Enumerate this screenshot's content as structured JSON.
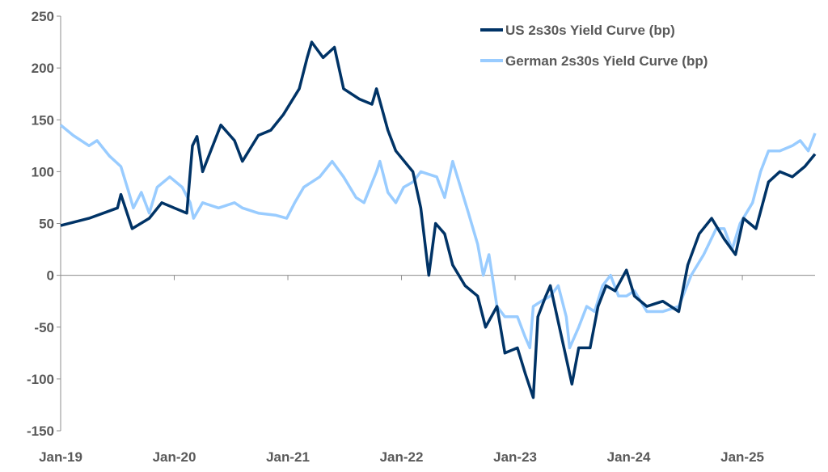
{
  "chart_data": {
    "type": "line",
    "title": "",
    "xlabel": "",
    "ylabel": "",
    "ylim": [
      -150,
      250
    ],
    "yticks": [
      -150,
      -100,
      -50,
      0,
      50,
      100,
      150,
      200,
      250
    ],
    "xlim": [
      2019.0,
      2025.64
    ],
    "xticks": [
      {
        "x": 2019,
        "label": "Jan-19"
      },
      {
        "x": 2020,
        "label": "Jan-20"
      },
      {
        "x": 2021,
        "label": "Jan-21"
      },
      {
        "x": 2022,
        "label": "Jan-22"
      },
      {
        "x": 2023,
        "label": "Jan-23"
      },
      {
        "x": 2024,
        "label": "Jan-24"
      },
      {
        "x": 2025,
        "label": "Jan-25"
      }
    ],
    "grid": false,
    "legend_position": "top-right",
    "series": [
      {
        "name": "US 2s30s Yield Curve (bp)",
        "color": "#003366",
        "points": [
          [
            2019.0,
            48
          ],
          [
            2019.25,
            55
          ],
          [
            2019.5,
            65
          ],
          [
            2019.53,
            78
          ],
          [
            2019.63,
            45
          ],
          [
            2019.78,
            55
          ],
          [
            2019.89,
            70
          ],
          [
            2020.0,
            65
          ],
          [
            2020.11,
            60
          ],
          [
            2020.16,
            125
          ],
          [
            2020.2,
            134
          ],
          [
            2020.25,
            100
          ],
          [
            2020.41,
            145
          ],
          [
            2020.53,
            130
          ],
          [
            2020.6,
            110
          ],
          [
            2020.74,
            135
          ],
          [
            2020.85,
            140
          ],
          [
            2020.96,
            155
          ],
          [
            2021.1,
            180
          ],
          [
            2021.17,
            210
          ],
          [
            2021.21,
            225
          ],
          [
            2021.31,
            210
          ],
          [
            2021.41,
            220
          ],
          [
            2021.49,
            180
          ],
          [
            2021.63,
            170
          ],
          [
            2021.74,
            165
          ],
          [
            2021.78,
            180
          ],
          [
            2021.88,
            140
          ],
          [
            2021.95,
            120
          ],
          [
            2022.1,
            100
          ],
          [
            2022.17,
            65
          ],
          [
            2022.24,
            0
          ],
          [
            2022.3,
            50
          ],
          [
            2022.38,
            40
          ],
          [
            2022.45,
            10
          ],
          [
            2022.56,
            -10
          ],
          [
            2022.67,
            -20
          ],
          [
            2022.74,
            -50
          ],
          [
            2022.84,
            -30
          ],
          [
            2022.91,
            -75
          ],
          [
            2023.02,
            -70
          ],
          [
            2023.09,
            -95
          ],
          [
            2023.16,
            -118
          ],
          [
            2023.2,
            -40
          ],
          [
            2023.27,
            -20
          ],
          [
            2023.31,
            -10
          ],
          [
            2023.38,
            -45
          ],
          [
            2023.45,
            -80
          ],
          [
            2023.5,
            -105
          ],
          [
            2023.56,
            -70
          ],
          [
            2023.66,
            -70
          ],
          [
            2023.73,
            -30
          ],
          [
            2023.8,
            -10
          ],
          [
            2023.88,
            -15
          ],
          [
            2023.98,
            5
          ],
          [
            2024.05,
            -20
          ],
          [
            2024.16,
            -30
          ],
          [
            2024.3,
            -25
          ],
          [
            2024.44,
            -35
          ],
          [
            2024.52,
            10
          ],
          [
            2024.62,
            40
          ],
          [
            2024.73,
            55
          ],
          [
            2024.84,
            35
          ],
          [
            2024.94,
            20
          ],
          [
            2025.01,
            55
          ],
          [
            2025.12,
            45
          ],
          [
            2025.23,
            90
          ],
          [
            2025.33,
            100
          ],
          [
            2025.44,
            95
          ],
          [
            2025.55,
            105
          ],
          [
            2025.64,
            117
          ]
        ]
      },
      {
        "name": "German 2s30s Yield Curve (bp)",
        "color": "#99CCFF",
        "points": [
          [
            2019.0,
            145
          ],
          [
            2019.11,
            135
          ],
          [
            2019.25,
            125
          ],
          [
            2019.32,
            130
          ],
          [
            2019.43,
            115
          ],
          [
            2019.53,
            105
          ],
          [
            2019.6,
            80
          ],
          [
            2019.64,
            65
          ],
          [
            2019.71,
            80
          ],
          [
            2019.78,
            60
          ],
          [
            2019.85,
            85
          ],
          [
            2019.96,
            95
          ],
          [
            2020.07,
            85
          ],
          [
            2020.14,
            70
          ],
          [
            2020.17,
            55
          ],
          [
            2020.25,
            70
          ],
          [
            2020.39,
            65
          ],
          [
            2020.53,
            70
          ],
          [
            2020.6,
            65
          ],
          [
            2020.74,
            60
          ],
          [
            2020.89,
            58
          ],
          [
            2020.99,
            55
          ],
          [
            2021.06,
            70
          ],
          [
            2021.14,
            85
          ],
          [
            2021.28,
            95
          ],
          [
            2021.39,
            110
          ],
          [
            2021.49,
            95
          ],
          [
            2021.6,
            75
          ],
          [
            2021.67,
            70
          ],
          [
            2021.78,
            100
          ],
          [
            2021.81,
            110
          ],
          [
            2021.88,
            80
          ],
          [
            2021.95,
            70
          ],
          [
            2022.02,
            85
          ],
          [
            2022.1,
            90
          ],
          [
            2022.17,
            100
          ],
          [
            2022.31,
            95
          ],
          [
            2022.38,
            75
          ],
          [
            2022.45,
            110
          ],
          [
            2022.52,
            85
          ],
          [
            2022.59,
            60
          ],
          [
            2022.67,
            30
          ],
          [
            2022.72,
            0
          ],
          [
            2022.77,
            20
          ],
          [
            2022.84,
            -30
          ],
          [
            2022.91,
            -40
          ],
          [
            2023.02,
            -40
          ],
          [
            2023.09,
            -60
          ],
          [
            2023.13,
            -70
          ],
          [
            2023.16,
            -30
          ],
          [
            2023.23,
            -25
          ],
          [
            2023.31,
            -20
          ],
          [
            2023.38,
            -10
          ],
          [
            2023.45,
            -40
          ],
          [
            2023.48,
            -70
          ],
          [
            2023.56,
            -50
          ],
          [
            2023.63,
            -30
          ],
          [
            2023.7,
            -35
          ],
          [
            2023.77,
            -10
          ],
          [
            2023.84,
            0
          ],
          [
            2023.91,
            -20
          ],
          [
            2023.98,
            -20
          ],
          [
            2024.05,
            -15
          ],
          [
            2024.16,
            -35
          ],
          [
            2024.3,
            -35
          ],
          [
            2024.44,
            -30
          ],
          [
            2024.55,
            0
          ],
          [
            2024.66,
            20
          ],
          [
            2024.77,
            45
          ],
          [
            2024.84,
            45
          ],
          [
            2024.91,
            25
          ],
          [
            2024.98,
            50
          ],
          [
            2025.09,
            70
          ],
          [
            2025.16,
            100
          ],
          [
            2025.23,
            120
          ],
          [
            2025.33,
            120
          ],
          [
            2025.44,
            125
          ],
          [
            2025.51,
            130
          ],
          [
            2025.58,
            120
          ],
          [
            2025.64,
            137
          ]
        ]
      }
    ]
  }
}
